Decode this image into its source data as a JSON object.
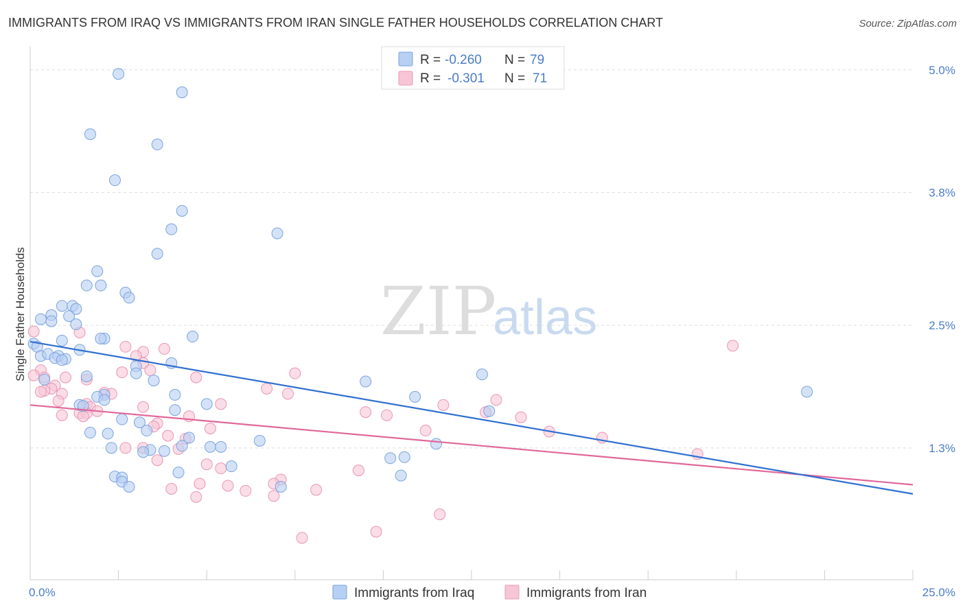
{
  "title": "IMMIGRANTS FROM IRAQ VS IMMIGRANTS FROM IRAN SINGLE FATHER HOUSEHOLDS CORRELATION CHART",
  "source": "Source: ZipAtlas.com",
  "watermark": {
    "zip": "ZIP",
    "atlas": "atlas"
  },
  "colors": {
    "iraq_fill": "#b7cff3",
    "iraq_stroke": "#7aa3dd",
    "iraq_line": "#2f6fd0",
    "iran_fill": "#f7c6d6",
    "iran_stroke": "#e996b3",
    "iran_line": "#e0679a",
    "grid": "#dddddd",
    "tick_text": "#4a7cc7"
  },
  "legend": {
    "r_label": "R =",
    "n_label": "N =",
    "iraq": {
      "r": "-0.260",
      "n": "79"
    },
    "iran": {
      "r": "-0.301",
      "n": "71"
    }
  },
  "chart_data": {
    "type": "scatter",
    "xlabel": "",
    "ylabel": "Single Father Households",
    "xlim": [
      0,
      25
    ],
    "ylim": [
      0.01,
      5.2
    ],
    "x_tick_labels": [
      "0.0%",
      "25.0%"
    ],
    "y_ticks": [
      1.3,
      2.5,
      3.8,
      5.0
    ],
    "y_tick_labels": [
      "1.3%",
      "2.5%",
      "3.8%",
      "5.0%"
    ],
    "grid": true,
    "legend_placement": "top-center",
    "series": [
      {
        "name": "Immigrants from Iraq",
        "trend": {
          "x": [
            0,
            25
          ],
          "y": [
            2.34,
            0.85
          ]
        },
        "points": [
          [
            2.5,
            4.96
          ],
          [
            4.3,
            4.78
          ],
          [
            1.7,
            4.37
          ],
          [
            3.6,
            4.27
          ],
          [
            2.4,
            3.92
          ],
          [
            4.3,
            3.62
          ],
          [
            4.0,
            3.44
          ],
          [
            7.0,
            3.4
          ],
          [
            3.6,
            3.2
          ],
          [
            1.9,
            3.03
          ],
          [
            2.0,
            2.89
          ],
          [
            1.6,
            2.89
          ],
          [
            2.7,
            2.82
          ],
          [
            2.8,
            2.77
          ],
          [
            0.9,
            2.69
          ],
          [
            1.2,
            2.69
          ],
          [
            1.3,
            2.66
          ],
          [
            0.6,
            2.6
          ],
          [
            1.1,
            2.59
          ],
          [
            0.3,
            2.56
          ],
          [
            0.6,
            2.54
          ],
          [
            1.3,
            2.51
          ],
          [
            4.6,
            2.39
          ],
          [
            2.1,
            2.37
          ],
          [
            2.0,
            2.37
          ],
          [
            0.9,
            2.35
          ],
          [
            0.1,
            2.32
          ],
          [
            0.2,
            2.29
          ],
          [
            1.4,
            2.26
          ],
          [
            0.3,
            2.2
          ],
          [
            0.5,
            2.22
          ],
          [
            0.8,
            2.2
          ],
          [
            0.7,
            2.18
          ],
          [
            1.0,
            2.17
          ],
          [
            0.9,
            2.16
          ],
          [
            4.0,
            2.13
          ],
          [
            3.0,
            2.1
          ],
          [
            3.0,
            2.03
          ],
          [
            1.6,
            2.0
          ],
          [
            0.4,
            1.97
          ],
          [
            3.5,
            1.96
          ],
          [
            9.5,
            1.95
          ],
          [
            12.8,
            2.02
          ],
          [
            22.0,
            1.85
          ],
          [
            4.1,
            1.82
          ],
          [
            2.1,
            1.82
          ],
          [
            1.9,
            1.8
          ],
          [
            10.9,
            1.8
          ],
          [
            2.1,
            1.77
          ],
          [
            5.0,
            1.73
          ],
          [
            1.4,
            1.72
          ],
          [
            1.5,
            1.71
          ],
          [
            4.1,
            1.67
          ],
          [
            13.0,
            1.66
          ],
          [
            2.6,
            1.58
          ],
          [
            3.1,
            1.55
          ],
          [
            3.3,
            1.47
          ],
          [
            1.7,
            1.45
          ],
          [
            2.2,
            1.44
          ],
          [
            4.5,
            1.4
          ],
          [
            6.5,
            1.37
          ],
          [
            4.3,
            1.32
          ],
          [
            5.1,
            1.31
          ],
          [
            5.4,
            1.31
          ],
          [
            11.5,
            1.34
          ],
          [
            2.3,
            1.3
          ],
          [
            3.4,
            1.28
          ],
          [
            3.8,
            1.27
          ],
          [
            3.2,
            1.26
          ],
          [
            10.2,
            1.2
          ],
          [
            10.6,
            1.21
          ],
          [
            5.7,
            1.12
          ],
          [
            2.4,
            1.02
          ],
          [
            2.6,
            1.01
          ],
          [
            10.5,
            1.03
          ],
          [
            2.6,
            0.97
          ],
          [
            7.1,
            0.92
          ],
          [
            2.8,
            0.92
          ],
          [
            4.2,
            1.06
          ]
        ]
      },
      {
        "name": "Immigrants from Iran",
        "trend": {
          "x": [
            0,
            25
          ],
          "y": [
            1.72,
            0.94
          ]
        },
        "points": [
          [
            0.1,
            2.44
          ],
          [
            1.4,
            2.43
          ],
          [
            2.7,
            2.29
          ],
          [
            3.8,
            2.27
          ],
          [
            3.2,
            2.24
          ],
          [
            19.9,
            2.3
          ],
          [
            3.0,
            2.2
          ],
          [
            3.2,
            2.13
          ],
          [
            3.4,
            2.06
          ],
          [
            0.3,
            2.06
          ],
          [
            2.6,
            2.04
          ],
          [
            7.5,
            2.03
          ],
          [
            0.1,
            2.01
          ],
          [
            0.4,
            1.99
          ],
          [
            1.0,
            1.99
          ],
          [
            4.7,
            1.99
          ],
          [
            1.6,
            1.97
          ],
          [
            0.7,
            1.91
          ],
          [
            0.6,
            1.88
          ],
          [
            0.4,
            1.86
          ],
          [
            0.3,
            1.85
          ],
          [
            6.7,
            1.88
          ],
          [
            2.1,
            1.84
          ],
          [
            0.9,
            1.83
          ],
          [
            2.3,
            1.83
          ],
          [
            7.3,
            1.83
          ],
          [
            13.2,
            1.77
          ],
          [
            0.8,
            1.76
          ],
          [
            1.6,
            1.73
          ],
          [
            5.4,
            1.73
          ],
          [
            3.2,
            1.7
          ],
          [
            1.7,
            1.7
          ],
          [
            11.7,
            1.72
          ],
          [
            1.9,
            1.66
          ],
          [
            9.5,
            1.65
          ],
          [
            12.9,
            1.65
          ],
          [
            1.4,
            1.64
          ],
          [
            1.6,
            1.64
          ],
          [
            10.1,
            1.62
          ],
          [
            0.9,
            1.62
          ],
          [
            1.5,
            1.61
          ],
          [
            4.5,
            1.61
          ],
          [
            13.9,
            1.6
          ],
          [
            3.6,
            1.54
          ],
          [
            3.5,
            1.51
          ],
          [
            5.1,
            1.49
          ],
          [
            11.2,
            1.47
          ],
          [
            14.7,
            1.46
          ],
          [
            3.9,
            1.42
          ],
          [
            4.4,
            1.39
          ],
          [
            16.2,
            1.4
          ],
          [
            2.7,
            1.3
          ],
          [
            3.2,
            1.3
          ],
          [
            4.2,
            1.29
          ],
          [
            3.6,
            1.18
          ],
          [
            18.9,
            1.24
          ],
          [
            5.0,
            1.14
          ],
          [
            5.4,
            1.1
          ],
          [
            9.3,
            1.08
          ],
          [
            7.1,
            0.99
          ],
          [
            6.9,
            0.95
          ],
          [
            5.6,
            0.93
          ],
          [
            4.8,
            0.95
          ],
          [
            4.0,
            0.9
          ],
          [
            8.1,
            0.89
          ],
          [
            6.1,
            0.88
          ],
          [
            6.9,
            0.83
          ],
          [
            4.7,
            0.82
          ],
          [
            11.6,
            0.65
          ],
          [
            9.8,
            0.48
          ],
          [
            7.7,
            0.42
          ]
        ]
      }
    ]
  }
}
